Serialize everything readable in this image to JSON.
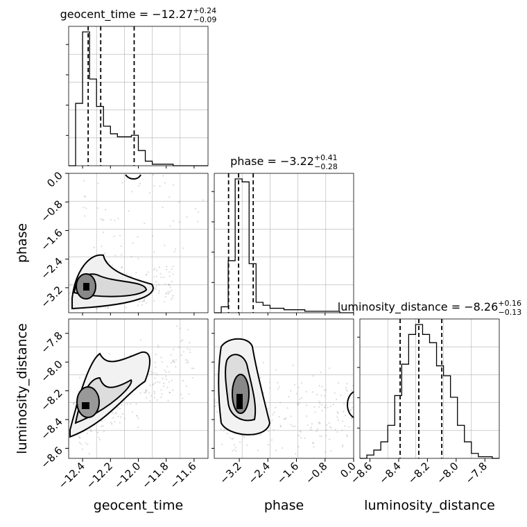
{
  "chart_data": {
    "type": "corner",
    "parameters": [
      "geocent_time",
      "phase",
      "luminosity_distance"
    ],
    "titles": [
      {
        "param": "geocent_time",
        "text": "geocent_time = −12.27",
        "plus": "+0.24",
        "minus": "−0.09",
        "median": -12.27,
        "q16": -12.36,
        "q84": -12.03
      },
      {
        "param": "phase",
        "text": "phase = −3.22",
        "plus": "+0.41",
        "minus": "−0.28",
        "median": -3.22,
        "q16": -3.5,
        "q84": -2.81
      },
      {
        "param": "luminosity_distance",
        "text": "luminosity_distance = −8.26",
        "plus": "+0.16",
        "minus": "−0.13",
        "median": -8.26,
        "q16": -8.39,
        "q84": -8.1
      }
    ],
    "ranges": {
      "geocent_time": [
        -12.5,
        -11.5
      ],
      "phase": [
        -3.9,
        0.0
      ],
      "luminosity_distance": [
        -8.67,
        -7.7
      ]
    },
    "ticks": {
      "geocent_time": {
        "values": [
          -12.4,
          -12.2,
          -12.0,
          -11.8,
          -11.6
        ],
        "labels": [
          "−12.4",
          "−12.2",
          "−12.0",
          "−11.8",
          "−11.6"
        ]
      },
      "phase": {
        "values": [
          -3.2,
          -2.4,
          -1.6,
          -0.8,
          0.0
        ],
        "labels": [
          "−3.2",
          "−2.4",
          "−1.6",
          "−0.8",
          "0.0"
        ]
      },
      "luminosity_distance": {
        "values": [
          -8.6,
          -8.4,
          -8.2,
          -8.0,
          -7.8
        ],
        "labels": [
          "−8.6",
          "−8.4",
          "−8.2",
          "−8.0",
          "−7.8"
        ]
      }
    },
    "histograms": {
      "geocent_time": {
        "edges_start": -12.5,
        "bin_width": 0.05,
        "counts": [
          0,
          41,
          88,
          57,
          39,
          26,
          21,
          19,
          19,
          20,
          10,
          3,
          1,
          1,
          1,
          0,
          0,
          0,
          0,
          0
        ]
      },
      "phase": {
        "edges_start": -3.9,
        "bin_width": 0.195,
        "counts": [
          0,
          4,
          35,
          90,
          88,
          33,
          7,
          5,
          3,
          3,
          2,
          2,
          2,
          1,
          1,
          1,
          1,
          1,
          0,
          0
        ]
      },
      "luminosity_distance": {
        "edges_start": -8.67,
        "bin_width": 0.0485,
        "counts": [
          0,
          2,
          5,
          10,
          20,
          38,
          57,
          75,
          81,
          75,
          70,
          56,
          50,
          37,
          20,
          10,
          3,
          1,
          1,
          0
        ]
      }
    },
    "grid": true
  }
}
